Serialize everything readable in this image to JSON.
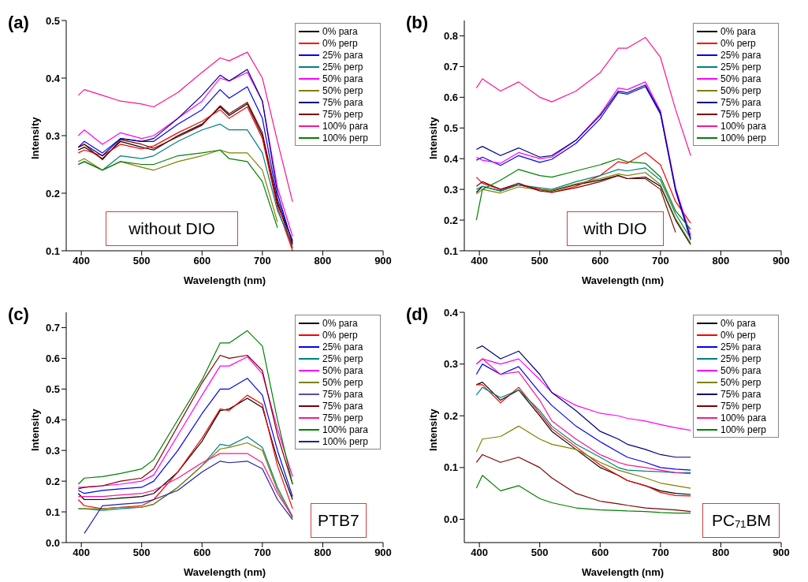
{
  "chart_data": [
    {
      "type": "line",
      "annotations": [
        "(a)",
        "without DIO"
      ],
      "xlabel": "Wavelength (nm)",
      "ylabel": "Intensity",
      "legend": "top right",
      "x": [
        395,
        405,
        435,
        465,
        500,
        520,
        560,
        600,
        630,
        645,
        675,
        700,
        725,
        750
      ],
      "xlim": [
        375,
        900
      ],
      "xticks": [
        400,
        500,
        600,
        700,
        800,
        900
      ],
      "ylim": [
        0.1,
        0.5
      ],
      "yticks": [
        0.1,
        0.2,
        0.3,
        0.4,
        0.5
      ],
      "series": [
        {
          "name": "0% para",
          "color": "#000000",
          "values": [
            0.275,
            0.28,
            0.26,
            0.29,
            0.28,
            0.275,
            0.3,
            0.32,
            0.35,
            0.335,
            0.355,
            0.3,
            0.18,
            0.118
          ]
        },
        {
          "name": "0% perp",
          "color": "#ff0000",
          "values": [
            0.27,
            0.275,
            0.265,
            0.285,
            0.277,
            0.282,
            0.305,
            0.325,
            0.345,
            0.33,
            0.35,
            0.295,
            0.175,
            0.1
          ]
        },
        {
          "name": "25% para",
          "color": "#0000ff",
          "values": [
            0.28,
            0.29,
            0.27,
            0.295,
            0.29,
            0.29,
            0.32,
            0.345,
            0.38,
            0.365,
            0.385,
            0.33,
            0.19,
            0.115
          ]
        },
        {
          "name": "25% perp",
          "color": "#008080",
          "values": [
            0.25,
            0.255,
            0.24,
            0.265,
            0.26,
            0.265,
            0.29,
            0.31,
            0.32,
            0.31,
            0.31,
            0.27,
            0.17,
            0.11
          ]
        },
        {
          "name": "50% para",
          "color": "#ff00ff",
          "values": [
            0.3,
            0.31,
            0.285,
            0.305,
            0.295,
            0.3,
            0.33,
            0.36,
            0.4,
            0.395,
            0.41,
            0.36,
            0.21,
            0.125
          ]
        },
        {
          "name": "50% perp",
          "color": "#808000",
          "values": [
            0.255,
            0.26,
            0.24,
            0.255,
            0.245,
            0.24,
            0.255,
            0.265,
            0.275,
            0.27,
            0.27,
            0.24,
            0.15,
            null
          ]
        },
        {
          "name": "75% para",
          "color": "#000080",
          "values": [
            0.28,
            0.285,
            0.265,
            0.295,
            0.29,
            0.295,
            0.33,
            0.37,
            0.405,
            0.395,
            0.415,
            0.36,
            0.2,
            0.112
          ]
        },
        {
          "name": "75% perp",
          "color": "#800000",
          "values": [
            0.28,
            0.285,
            0.258,
            0.293,
            0.285,
            0.278,
            0.298,
            0.318,
            0.352,
            0.338,
            0.358,
            0.305,
            0.185,
            0.105
          ]
        },
        {
          "name": "100% para",
          "color": "#ff1493",
          "values": [
            0.37,
            0.38,
            0.37,
            0.36,
            0.355,
            0.35,
            0.375,
            0.41,
            0.435,
            0.43,
            0.445,
            0.4,
            0.29,
            0.185
          ]
        },
        {
          "name": "100% perp",
          "color": "#008000",
          "values": [
            0.25,
            0.255,
            0.24,
            0.255,
            0.25,
            0.25,
            0.265,
            0.27,
            0.275,
            0.26,
            0.255,
            0.22,
            0.14,
            null
          ]
        }
      ]
    },
    {
      "type": "line",
      "annotations": [
        "(b)",
        "with DIO"
      ],
      "xlabel": "Wavelength (nm)",
      "ylabel": "Intensity",
      "legend": "top right",
      "x": [
        395,
        405,
        435,
        465,
        500,
        520,
        560,
        600,
        630,
        645,
        675,
        700,
        725,
        750
      ],
      "xlim": [
        375,
        900
      ],
      "xticks": [
        400,
        500,
        600,
        700,
        800,
        900
      ],
      "ylim": [
        0.1,
        0.85
      ],
      "yticks": [
        0.1,
        0.2,
        0.3,
        0.4,
        0.5,
        0.6,
        0.7,
        0.8
      ],
      "series": [
        {
          "name": "0% para",
          "color": "#000000",
          "values": [
            0.29,
            0.31,
            0.295,
            0.315,
            0.3,
            0.295,
            0.315,
            0.33,
            0.345,
            0.335,
            0.34,
            0.31,
            0.2,
            0.12
          ]
        },
        {
          "name": "0% perp",
          "color": "#ff0000",
          "values": [
            0.34,
            0.32,
            0.3,
            0.315,
            0.3,
            0.29,
            0.31,
            0.345,
            0.39,
            0.385,
            0.42,
            0.38,
            0.26,
            0.19
          ]
        },
        {
          "name": "25% para",
          "color": "#0000ff",
          "values": [
            0.395,
            0.405,
            0.378,
            0.41,
            0.388,
            0.398,
            0.45,
            0.53,
            0.615,
            0.61,
            0.635,
            0.545,
            0.295,
            0.135
          ]
        },
        {
          "name": "25% perp",
          "color": "#008080",
          "values": [
            0.3,
            0.31,
            0.295,
            0.315,
            0.305,
            0.3,
            0.325,
            0.345,
            0.365,
            0.36,
            0.37,
            0.33,
            0.22,
            0.14
          ]
        },
        {
          "name": "50% para",
          "color": "#ff00ff",
          "values": [
            0.405,
            0.395,
            0.385,
            0.42,
            0.4,
            0.405,
            0.46,
            0.545,
            0.63,
            0.625,
            0.65,
            0.555,
            0.305,
            0.15
          ]
        },
        {
          "name": "50% perp",
          "color": "#808000",
          "values": [
            0.285,
            0.3,
            0.288,
            0.308,
            0.298,
            0.297,
            0.318,
            0.335,
            0.35,
            0.345,
            0.355,
            0.315,
            0.205,
            0.125
          ]
        },
        {
          "name": "75% para",
          "color": "#000080",
          "values": [
            0.43,
            0.44,
            0.41,
            0.435,
            0.405,
            0.41,
            0.46,
            0.54,
            0.62,
            0.615,
            0.64,
            0.55,
            0.3,
            0.14
          ]
        },
        {
          "name": "75% perp",
          "color": "#800000",
          "values": [
            0.31,
            0.325,
            0.3,
            0.32,
            0.295,
            0.29,
            0.305,
            0.325,
            0.345,
            0.335,
            0.335,
            0.3,
            0.16,
            null
          ]
        },
        {
          "name": "100% para",
          "color": "#ff1493",
          "values": [
            0.63,
            0.66,
            0.62,
            0.65,
            0.6,
            0.585,
            0.62,
            0.68,
            0.76,
            0.76,
            0.795,
            0.73,
            0.56,
            0.41
          ]
        },
        {
          "name": "100% perp",
          "color": "#008000",
          "values": [
            0.2,
            0.3,
            0.33,
            0.365,
            0.345,
            0.34,
            0.36,
            0.38,
            0.4,
            0.39,
            0.385,
            0.34,
            0.23,
            0.17
          ]
        }
      ]
    },
    {
      "type": "line",
      "annotations": [
        "(c)",
        "PTB7"
      ],
      "xlabel": "Wavelength (nm)",
      "ylabel": "Intensity",
      "legend": "top right",
      "x": [
        395,
        405,
        435,
        465,
        500,
        520,
        560,
        600,
        630,
        645,
        675,
        700,
        725,
        750
      ],
      "xlim": [
        375,
        900
      ],
      "xticks": [
        400,
        500,
        600,
        700,
        800,
        900
      ],
      "ylim": [
        0,
        0.75
      ],
      "yticks": [
        {
          "value": 0,
          "label": "0.0"
        },
        0.1,
        0.2,
        0.3,
        0.4,
        0.5,
        0.6,
        0.7
      ],
      "series": [
        {
          "name": "0% para",
          "color": "#000000",
          "values": [
            0.16,
            0.14,
            0.14,
            0.145,
            0.15,
            0.16,
            0.23,
            0.33,
            0.43,
            0.435,
            0.47,
            0.44,
            0.27,
            0.14
          ]
        },
        {
          "name": "0% perp",
          "color": "#ff0000",
          "values": [
            0.14,
            0.12,
            0.11,
            0.115,
            0.12,
            0.14,
            0.23,
            0.34,
            0.435,
            0.43,
            0.48,
            0.45,
            0.25,
            0.11
          ]
        },
        {
          "name": "25% para",
          "color": "#0000ff",
          "values": [
            0.17,
            0.16,
            0.17,
            0.175,
            0.18,
            0.2,
            0.3,
            0.42,
            0.5,
            0.5,
            0.535,
            0.48,
            0.3,
            0.15
          ]
        },
        {
          "name": "25% perp",
          "color": "#008080",
          "values": [
            0.11,
            0.11,
            0.105,
            0.11,
            0.115,
            0.125,
            0.18,
            0.25,
            0.32,
            0.315,
            0.345,
            0.31,
            0.18,
            0.085
          ]
        },
        {
          "name": "50% para",
          "color": "#ff00ff",
          "values": [
            0.18,
            0.18,
            0.185,
            0.19,
            0.2,
            0.22,
            0.35,
            0.48,
            0.575,
            0.575,
            0.605,
            0.55,
            0.37,
            0.215
          ]
        },
        {
          "name": "50% perp",
          "color": "#808000",
          "values": [
            0.11,
            0.11,
            0.11,
            0.115,
            0.115,
            0.125,
            0.18,
            0.25,
            0.305,
            0.31,
            0.325,
            0.3,
            0.17,
            0.08
          ]
        },
        {
          "name": "75% para",
          "color": "#5050b0",
          "values": [
            null,
            null,
            null,
            null,
            null,
            null,
            null,
            null,
            null,
            null,
            null,
            null,
            null,
            null
          ]
        },
        {
          "name": "75% para",
          "color": "#800000",
          "values": [
            0.175,
            0.18,
            0.185,
            0.2,
            0.21,
            0.24,
            0.38,
            0.52,
            0.61,
            0.6,
            0.61,
            0.56,
            0.35,
            0.19
          ]
        },
        {
          "name": "75% perp",
          "color": "#ff1493",
          "values": [
            0.15,
            0.15,
            0.15,
            0.155,
            0.16,
            0.17,
            0.21,
            0.26,
            0.29,
            0.29,
            0.29,
            0.26,
            0.16,
            0.085
          ]
        },
        {
          "name": "100% para",
          "color": "#008000",
          "values": [
            0.19,
            0.21,
            0.215,
            0.225,
            0.24,
            0.27,
            0.4,
            0.53,
            0.65,
            0.65,
            0.69,
            0.64,
            0.4,
            0.19
          ]
        },
        {
          "name": "100% perp",
          "color": "#2020a0",
          "values": [
            null,
            0.03,
            0.12,
            0.125,
            0.13,
            0.14,
            0.17,
            0.23,
            0.265,
            0.26,
            0.265,
            0.24,
            0.14,
            0.075
          ]
        }
      ]
    },
    {
      "type": "line",
      "annotations": [
        "(d)",
        "PC₇₁BM"
      ],
      "xlabel": "Wavelength (nm)",
      "ylabel": "Intensity",
      "legend": "top right",
      "x": [
        395,
        405,
        435,
        465,
        500,
        520,
        560,
        600,
        630,
        645,
        675,
        700,
        725,
        750
      ],
      "xlim": [
        375,
        900
      ],
      "xticks": [
        400,
        500,
        600,
        700,
        800,
        900
      ],
      "ylim": [
        -0.045,
        0.4
      ],
      "yticks": [
        {
          "value": 0,
          "label": "0.0"
        },
        0.1,
        0.2,
        0.3,
        0.4
      ],
      "series": [
        {
          "name": "0% para",
          "color": "#000000",
          "values": [
            0.26,
            0.265,
            0.23,
            0.25,
            0.2,
            0.17,
            0.135,
            0.1,
            0.085,
            0.075,
            0.065,
            0.055,
            0.05,
            0.048
          ]
        },
        {
          "name": "0% perp",
          "color": "#ff0000",
          "values": [
            0.26,
            0.26,
            0.225,
            0.255,
            0.205,
            0.175,
            0.14,
            0.105,
            0.085,
            0.075,
            0.065,
            0.052,
            0.046,
            0.045
          ]
        },
        {
          "name": "25% para",
          "color": "#0000ff",
          "values": [
            0.28,
            0.3,
            0.28,
            0.295,
            0.245,
            0.22,
            0.18,
            0.15,
            0.13,
            0.12,
            0.11,
            0.1,
            0.097,
            0.095
          ]
        },
        {
          "name": "25% perp",
          "color": "#008080",
          "values": [
            0.24,
            0.255,
            0.235,
            0.25,
            0.21,
            0.18,
            0.145,
            0.12,
            0.1,
            0.095,
            0.093,
            0.092,
            0.09,
            0.09
          ]
        },
        {
          "name": "50% para",
          "color": "#ff00ff",
          "values": [
            0.3,
            0.31,
            0.3,
            0.31,
            0.27,
            0.245,
            0.22,
            0.205,
            0.2,
            0.195,
            0.19,
            0.183,
            0.177,
            0.172
          ]
        },
        {
          "name": "50% perp",
          "color": "#808000",
          "values": [
            0.13,
            0.155,
            0.16,
            0.18,
            0.155,
            0.145,
            0.135,
            0.11,
            0.095,
            0.09,
            0.08,
            0.07,
            0.065,
            0.06
          ]
        },
        {
          "name": "75% para",
          "color": "#000080",
          "values": [
            0.33,
            0.335,
            0.31,
            0.325,
            0.28,
            0.245,
            0.21,
            0.17,
            0.155,
            0.145,
            0.135,
            0.125,
            0.12,
            0.12
          ]
        },
        {
          "name": "75% perp",
          "color": "#800000",
          "values": [
            0.11,
            0.125,
            0.11,
            0.12,
            0.1,
            0.08,
            0.05,
            0.035,
            0.03,
            0.027,
            0.022,
            0.02,
            0.018,
            0.015
          ]
        },
        {
          "name": "100% para",
          "color": "#ff1493",
          "values": [
            0.3,
            0.31,
            0.28,
            0.285,
            0.23,
            0.19,
            0.155,
            0.125,
            0.11,
            0.105,
            0.1,
            0.095,
            0.09,
            0.088
          ]
        },
        {
          "name": "100% perp",
          "color": "#008000",
          "values": [
            0.06,
            0.085,
            0.055,
            0.065,
            0.04,
            0.032,
            0.022,
            0.018,
            0.017,
            0.016,
            0.015,
            0.013,
            0.012,
            0.012
          ]
        }
      ]
    }
  ]
}
